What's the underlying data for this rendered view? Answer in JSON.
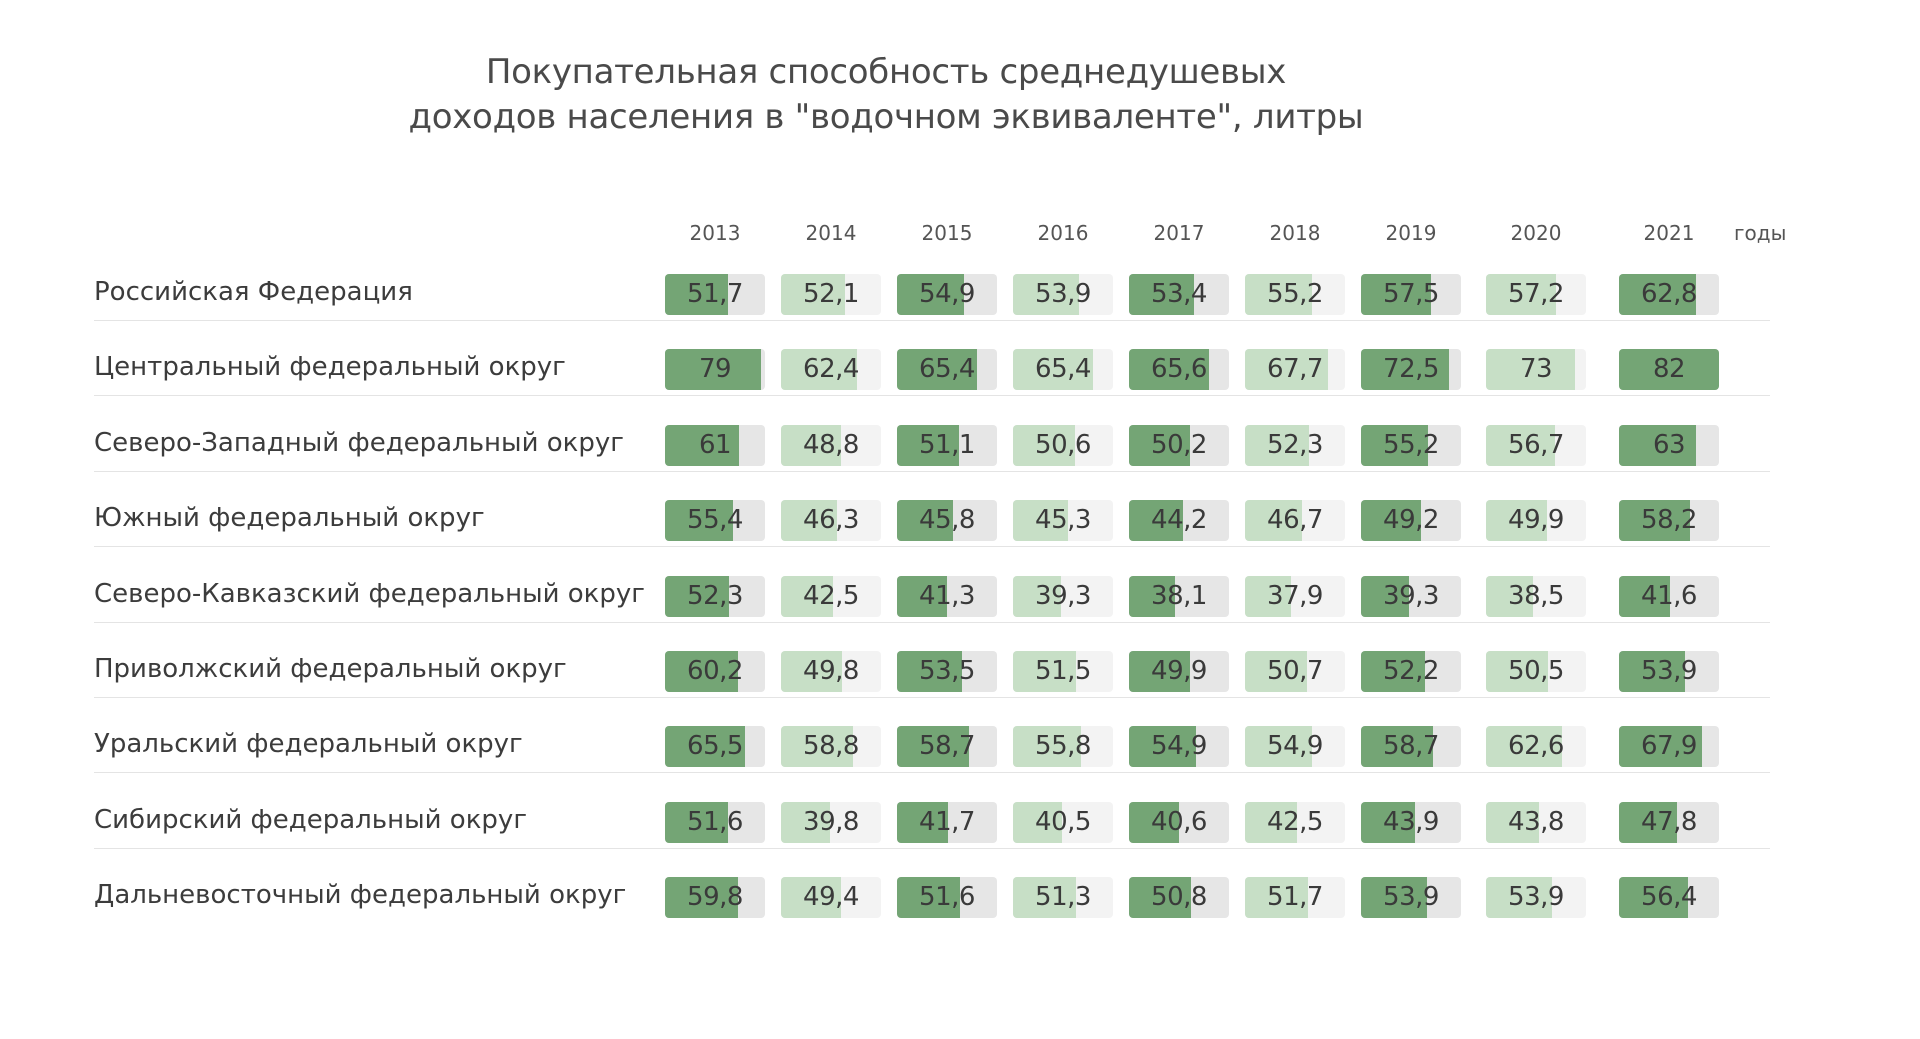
{
  "chart_data": {
    "type": "table",
    "title_lines": [
      "Покупательная способность среднедушевых",
      "доходов населения в \"водочном эквиваленте\", литры"
    ],
    "years": [
      "2013",
      "2014",
      "2015",
      "2016",
      "2017",
      "2018",
      "2019",
      "2020",
      "2021"
    ],
    "years_unit": "годы",
    "bar_scale_max": 82,
    "colors": {
      "dark_fill": "#74a575",
      "dark_track": "#e6e6e6",
      "light_fill": "#c7dfc6",
      "light_track": "#f3f3f3"
    },
    "rows": [
      {
        "region": "Российская Федерация",
        "values": [
          51.7,
          52.1,
          54.9,
          53.9,
          53.4,
          55.2,
          57.5,
          57.2,
          62.8
        ],
        "labels": [
          "51,7",
          "52,1",
          "54,9",
          "53,9",
          "53,4",
          "55,2",
          "57,5",
          "57,2",
          "62,8"
        ]
      },
      {
        "region": "Центральный федеральный округ",
        "values": [
          79,
          62.4,
          65.4,
          65.4,
          65.6,
          67.7,
          72.5,
          73,
          82
        ],
        "labels": [
          "79",
          "62,4",
          "65,4",
          "65,4",
          "65,6",
          "67,7",
          "72,5",
          "73",
          "82"
        ]
      },
      {
        "region": "Северо-Западный федеральный округ",
        "values": [
          61,
          48.8,
          51.1,
          50.6,
          50.2,
          52.3,
          55.2,
          56.7,
          63
        ],
        "labels": [
          "61",
          "48,8",
          "51,1",
          "50,6",
          "50,2",
          "52,3",
          "55,2",
          "56,7",
          "63"
        ]
      },
      {
        "region": "Южный федеральный округ",
        "values": [
          55.4,
          46.3,
          45.8,
          45.3,
          44.2,
          46.7,
          49.2,
          49.9,
          58.2
        ],
        "labels": [
          "55,4",
          "46,3",
          "45,8",
          "45,3",
          "44,2",
          "46,7",
          "49,2",
          "49,9",
          "58,2"
        ]
      },
      {
        "region": "Северо-Кавказский федеральный округ",
        "values": [
          52.3,
          42.5,
          41.3,
          39.3,
          38.1,
          37.9,
          39.3,
          38.5,
          41.6
        ],
        "labels": [
          "52,3",
          "42,5",
          "41,3",
          "39,3",
          "38,1",
          "37,9",
          "39,3",
          "38,5",
          "41,6"
        ]
      },
      {
        "region": "Приволжский федеральный округ",
        "values": [
          60.2,
          49.8,
          53.5,
          51.5,
          49.9,
          50.7,
          52.2,
          50.5,
          53.9
        ],
        "labels": [
          "60,2",
          "49,8",
          "53,5",
          "51,5",
          "49,9",
          "50,7",
          "52,2",
          "50,5",
          "53,9"
        ]
      },
      {
        "region": "Уральский федеральный округ",
        "values": [
          65.5,
          58.8,
          58.7,
          55.8,
          54.9,
          54.9,
          58.7,
          62.6,
          67.9
        ],
        "labels": [
          "65,5",
          "58,8",
          "58,7",
          "55,8",
          "54,9",
          "54,9",
          "58,7",
          "62,6",
          "67,9"
        ]
      },
      {
        "region": "Сибирский федеральный округ",
        "values": [
          51.6,
          39.8,
          41.7,
          40.5,
          40.6,
          42.5,
          43.9,
          43.8,
          47.8
        ],
        "labels": [
          "51,6",
          "39,8",
          "41,7",
          "40,5",
          "40,6",
          "42,5",
          "43,9",
          "43,8",
          "47,8"
        ]
      },
      {
        "region": "Дальневосточный федеральный округ",
        "values": [
          59.8,
          49.4,
          51.6,
          51.3,
          50.8,
          51.7,
          53.9,
          53.9,
          56.4
        ],
        "labels": [
          "59,8",
          "49,4",
          "51,6",
          "51,3",
          "50,8",
          "51,7",
          "53,9",
          "53,9",
          "56,4"
        ]
      }
    ]
  }
}
